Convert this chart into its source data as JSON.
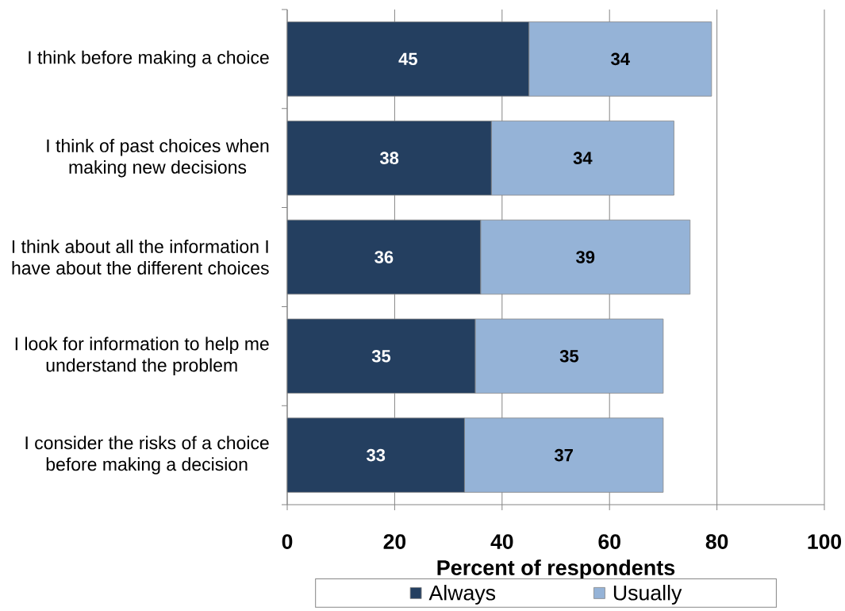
{
  "chart_data": {
    "type": "bar",
    "orientation": "horizontal",
    "stacked": true,
    "categories": [
      "I think before making a choice",
      "I think of past choices when making new decisions",
      "I think about all the information I have about the different choices",
      "I look for information to help me understand the problem",
      "I consider the risks of a choice before making a decision"
    ],
    "series": [
      {
        "name": "Always",
        "color": "#243f60",
        "values": [
          45,
          38,
          36,
          35,
          33
        ]
      },
      {
        "name": "Usually",
        "color": "#95b3d7",
        "values": [
          34,
          34,
          39,
          35,
          37
        ]
      }
    ],
    "xlabel": "Percent of respondents",
    "xlim": [
      0,
      100
    ],
    "xticks": [
      0,
      20,
      40,
      60,
      80,
      100
    ],
    "grid": "x",
    "legend": "bottom",
    "data_labels": true
  }
}
